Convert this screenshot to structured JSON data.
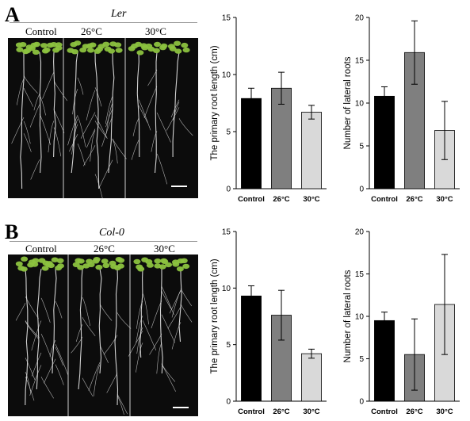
{
  "panels": [
    {
      "letter": "A",
      "genotype": "Ler",
      "photo_labels": [
        "Control",
        "26°C",
        "30°C"
      ]
    },
    {
      "letter": "B",
      "genotype": "Col-0",
      "photo_labels": [
        "Control",
        "26°C",
        "30°C"
      ]
    }
  ],
  "colors": {
    "Control": "#000000",
    "26°C": "#7f7f7f",
    "30°C": "#d9d9d9",
    "photo_background": "#0c0c0c",
    "leaf": "#8cc23f",
    "root": "#e8e8e8"
  },
  "chart_data": [
    {
      "type": "bar",
      "panel": "A",
      "categories": [
        "Control",
        "26°C",
        "30°C"
      ],
      "values": [
        7.9,
        8.8,
        6.7
      ],
      "error": [
        0.9,
        1.4,
        0.6
      ],
      "ylabel": "The primary root length (cm)",
      "ylim": [
        0,
        15
      ],
      "yticks": [
        0,
        5,
        10,
        15
      ],
      "grid": false,
      "legend": "none"
    },
    {
      "type": "bar",
      "panel": "A",
      "categories": [
        "Control",
        "26°C",
        "30°C"
      ],
      "values": [
        10.8,
        15.9,
        6.8
      ],
      "error": [
        1.1,
        3.7,
        3.4
      ],
      "ylabel": "Number of lateral roots",
      "ylim": [
        0,
        20
      ],
      "yticks": [
        0,
        5,
        10,
        15,
        20
      ],
      "grid": false,
      "legend": "none"
    },
    {
      "type": "bar",
      "panel": "B",
      "categories": [
        "Control",
        "26°C",
        "30°C"
      ],
      "values": [
        9.3,
        7.6,
        4.2
      ],
      "error": [
        0.9,
        2.2,
        0.4
      ],
      "ylabel": "The primary root length (cm)",
      "ylim": [
        0,
        15
      ],
      "yticks": [
        0,
        5,
        10,
        15
      ],
      "grid": false,
      "legend": "none"
    },
    {
      "type": "bar",
      "panel": "B",
      "categories": [
        "Control",
        "26°C",
        "30°C"
      ],
      "values": [
        9.5,
        5.5,
        11.4
      ],
      "error": [
        1.0,
        4.2,
        5.9
      ],
      "ylabel": "Number of lateral roots",
      "ylim": [
        0,
        20
      ],
      "yticks": [
        0,
        5,
        10,
        15,
        20
      ],
      "grid": false,
      "legend": "none"
    }
  ]
}
